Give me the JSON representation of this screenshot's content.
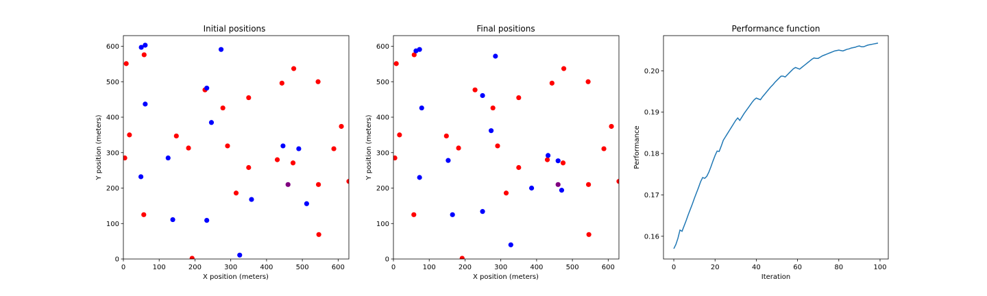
{
  "colors": {
    "red": "#ff0000",
    "blue": "#0000ff",
    "purple": "#800080",
    "line": "#1f77b4"
  },
  "chart_data": [
    {
      "type": "scatter",
      "title": "Initial positions",
      "xlabel": "X position (meters)",
      "ylabel": "Y position (meters)",
      "xlim": [
        0,
        630
      ],
      "ylim": [
        0,
        630
      ],
      "xticks": [
        0,
        100,
        200,
        300,
        400,
        500,
        600
      ],
      "yticks": [
        0,
        100,
        200,
        300,
        400,
        500,
        600
      ],
      "series": [
        {
          "color": "red",
          "points": [
            [
              8,
              551
            ],
            [
              17,
              350
            ],
            [
              4,
              285
            ],
            [
              57,
              125
            ],
            [
              58,
              576
            ],
            [
              148,
              347
            ],
            [
              182,
              313
            ],
            [
              192,
              2
            ],
            [
              228,
              477
            ],
            [
              278,
              426
            ],
            [
              291,
              319
            ],
            [
              315,
              186
            ],
            [
              350,
              455
            ],
            [
              350,
              258
            ],
            [
              443,
              496
            ],
            [
              430,
              280
            ],
            [
              476,
              537
            ],
            [
              474,
              271
            ],
            [
              544,
              500
            ],
            [
              545,
              210
            ],
            [
              546,
              69
            ],
            [
              609,
              374
            ],
            [
              588,
              311
            ],
            [
              630,
              219
            ]
          ]
        },
        {
          "color": "blue",
          "points": [
            [
              50,
              597
            ],
            [
              61,
              603
            ],
            [
              49,
              232
            ],
            [
              61,
              437
            ],
            [
              125,
              285
            ],
            [
              138,
              111
            ],
            [
              233,
              482
            ],
            [
              233,
              109
            ],
            [
              246,
              385
            ],
            [
              273,
              591
            ],
            [
              325,
              11
            ],
            [
              358,
              168
            ],
            [
              446,
              319
            ],
            [
              490,
              311
            ],
            [
              512,
              156
            ]
          ]
        },
        {
          "color": "purple",
          "points": [
            [
              460,
              210
            ]
          ]
        }
      ]
    },
    {
      "type": "scatter",
      "title": "Final positions",
      "xlabel": "X position (meters)",
      "ylabel": "Y position (meters)",
      "xlim": [
        0,
        630
      ],
      "ylim": [
        0,
        630
      ],
      "xticks": [
        0,
        100,
        200,
        300,
        400,
        500,
        600
      ],
      "yticks": [
        0,
        100,
        200,
        300,
        400,
        500,
        600
      ],
      "series": [
        {
          "color": "red",
          "points": [
            [
              8,
              551
            ],
            [
              17,
              350
            ],
            [
              4,
              285
            ],
            [
              57,
              125
            ],
            [
              58,
              576
            ],
            [
              148,
              347
            ],
            [
              182,
              313
            ],
            [
              192,
              2
            ],
            [
              228,
              477
            ],
            [
              278,
              426
            ],
            [
              291,
              319
            ],
            [
              315,
              186
            ],
            [
              350,
              455
            ],
            [
              350,
              258
            ],
            [
              443,
              496
            ],
            [
              430,
              280
            ],
            [
              476,
              537
            ],
            [
              474,
              271
            ],
            [
              544,
              500
            ],
            [
              545,
              210
            ],
            [
              546,
              69
            ],
            [
              609,
              374
            ],
            [
              588,
              311
            ],
            [
              630,
              219
            ]
          ]
        },
        {
          "color": "blue",
          "points": [
            [
              63,
              587
            ],
            [
              73,
              591
            ],
            [
              73,
              230
            ],
            [
              79,
              426
            ],
            [
              153,
              278
            ],
            [
              165,
              125
            ],
            [
              249,
              461
            ],
            [
              249,
              134
            ],
            [
              273,
              362
            ],
            [
              285,
              572
            ],
            [
              328,
              40
            ],
            [
              386,
              200
            ],
            [
              432,
              292
            ],
            [
              460,
              277
            ],
            [
              470,
              194
            ]
          ]
        },
        {
          "color": "purple",
          "points": [
            [
              460,
              210
            ]
          ]
        }
      ]
    },
    {
      "type": "line",
      "title": "Performance function",
      "xlabel": "Iteration",
      "ylabel": "Performance",
      "xlim": [
        -5,
        104
      ],
      "ylim": [
        0.1545,
        0.2085
      ],
      "xticks": [
        0,
        20,
        40,
        60,
        80,
        100
      ],
      "yticks": [
        0.16,
        0.17,
        0.18,
        0.19,
        0.2
      ],
      "ytick_labels": [
        "0.16",
        "0.17",
        "0.18",
        "0.19",
        "0.20"
      ],
      "series": [
        {
          "color": "line",
          "x": [
            0,
            1,
            2,
            3,
            4,
            5,
            6,
            7,
            8,
            9,
            10,
            11,
            12,
            13,
            14,
            15,
            16,
            17,
            18,
            19,
            20,
            21,
            22,
            23,
            24,
            25,
            26,
            27,
            28,
            29,
            30,
            31,
            32,
            33,
            34,
            35,
            36,
            37,
            38,
            39,
            40,
            41,
            42,
            43,
            44,
            45,
            46,
            47,
            48,
            49,
            50,
            51,
            52,
            53,
            54,
            55,
            56,
            57,
            58,
            59,
            60,
            61,
            62,
            63,
            64,
            65,
            66,
            67,
            68,
            69,
            70,
            71,
            72,
            73,
            74,
            75,
            76,
            77,
            78,
            79,
            80,
            81,
            82,
            83,
            84,
            85,
            86,
            87,
            88,
            89,
            90,
            91,
            92,
            93,
            94,
            95,
            96,
            97,
            98,
            99
          ],
          "values": [
            0.157,
            0.158,
            0.1595,
            0.1615,
            0.1612,
            0.1625,
            0.1638,
            0.1652,
            0.1665,
            0.1678,
            0.1692,
            0.1705,
            0.1718,
            0.1732,
            0.1742,
            0.174,
            0.1745,
            0.1755,
            0.1768,
            0.1782,
            0.1795,
            0.1806,
            0.1805,
            0.1818,
            0.1832,
            0.184,
            0.1848,
            0.1856,
            0.1864,
            0.1872,
            0.188,
            0.1886,
            0.188,
            0.1888,
            0.1896,
            0.1903,
            0.191,
            0.1917,
            0.1924,
            0.193,
            0.1934,
            0.1932,
            0.193,
            0.1937,
            0.1943,
            0.1949,
            0.1955,
            0.1961,
            0.1966,
            0.1972,
            0.1977,
            0.1982,
            0.1987,
            0.1987,
            0.1985,
            0.199,
            0.1995,
            0.2,
            0.2005,
            0.2008,
            0.2006,
            0.2004,
            0.2008,
            0.2012,
            0.2016,
            0.202,
            0.2024,
            0.2028,
            0.2031,
            0.203,
            0.203,
            0.2033,
            0.2036,
            0.2038,
            0.204,
            0.2042,
            0.2044,
            0.2046,
            0.2048,
            0.2049,
            0.205,
            0.2049,
            0.2048,
            0.205,
            0.2052,
            0.2053,
            0.2055,
            0.2056,
            0.2057,
            0.2059,
            0.206,
            0.2058,
            0.2058,
            0.206,
            0.2062,
            0.2063,
            0.2064,
            0.2065,
            0.2066,
            0.2067
          ]
        }
      ]
    }
  ]
}
